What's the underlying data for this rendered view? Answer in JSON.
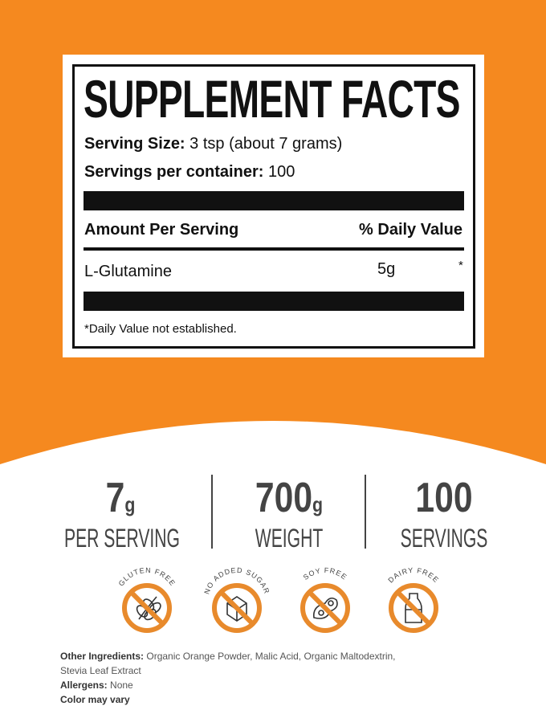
{
  "colors": {
    "orange": "#f5891f",
    "icon_orange": "#e88a2c",
    "text_dark": "#444444"
  },
  "facts": {
    "title": "SUPPLEMENT FACTS",
    "serving_size_label": "Serving Size:",
    "serving_size_value": "3 tsp (about 7 grams)",
    "servings_label": "Servings per container:",
    "servings_value": "100",
    "amount_header": "Amount Per Serving",
    "dv_header": "% Daily Value",
    "rows": [
      {
        "name": "L-Glutamine",
        "amount": "5g",
        "dv": "*"
      }
    ],
    "footnote": "*Daily Value not established."
  },
  "stats": [
    {
      "value": "7",
      "unit": "g",
      "label": "PER SERVING"
    },
    {
      "value": "700",
      "unit": "g",
      "label": "WEIGHT"
    },
    {
      "value": "100",
      "unit": "",
      "label": "SERVINGS"
    }
  ],
  "badges": [
    {
      "label": "GLUTEN FREE",
      "icon": "wheat-icon"
    },
    {
      "label": "NO ADDED SUGAR",
      "icon": "sugar-cube-icon"
    },
    {
      "label": "SOY FREE",
      "icon": "soybean-icon"
    },
    {
      "label": "DAIRY FREE",
      "icon": "milk-bottle-icon"
    }
  ],
  "ingredients": {
    "label": "Other Ingredients:",
    "line1": "Organic Orange Powder, Malic Acid, Organic Maltodextrin,",
    "line2": "Stevia Leaf Extract",
    "allergens_label": "Allergens:",
    "allergens_value": "None",
    "note": "Color may vary"
  }
}
